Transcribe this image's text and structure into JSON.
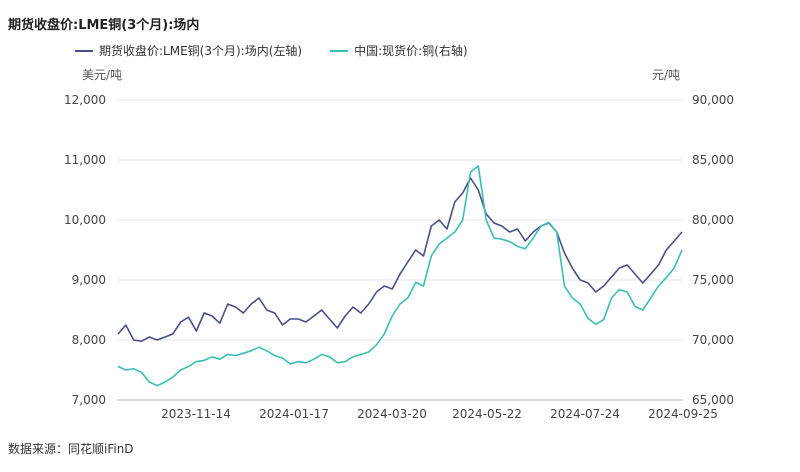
{
  "chart_data": {
    "type": "line",
    "title": "期货收盘价:LME铜(3个月):场内",
    "left_unit": "美元/吨",
    "right_unit": "元/吨",
    "source": "数据来源：同花顺iFinD",
    "x_tick_labels": [
      "2023-11-14",
      "2024-01-17",
      "2024-03-20",
      "2024-05-22",
      "2024-07-24",
      "2024-09-25"
    ],
    "y_left": {
      "min": 7000,
      "max": 12000,
      "ticks": [
        7000,
        8000,
        9000,
        10000,
        11000,
        12000
      ],
      "tick_labels": [
        "7,000",
        "8,000",
        "9,000",
        "10,000",
        "11,000",
        "12,000"
      ]
    },
    "y_right": {
      "min": 65000,
      "max": 90000,
      "ticks": [
        65000,
        70000,
        75000,
        80000,
        85000,
        90000
      ],
      "tick_labels": [
        "65,000",
        "70,000",
        "75,000",
        "80,000",
        "85,000",
        "90,000"
      ]
    },
    "series": [
      {
        "name": "期货收盘价:LME铜(3个月):场内(左轴)",
        "axis": "left",
        "color": "#4a4f8c",
        "values": [
          8100,
          8250,
          8000,
          7980,
          8050,
          8000,
          8050,
          8100,
          8300,
          8380,
          8150,
          8450,
          8400,
          8280,
          8600,
          8550,
          8450,
          8600,
          8700,
          8500,
          8450,
          8250,
          8350,
          8350,
          8300,
          8400,
          8500,
          8350,
          8200,
          8400,
          8550,
          8450,
          8600,
          8800,
          8900,
          8850,
          9100,
          9300,
          9500,
          9400,
          9900,
          10000,
          9850,
          10300,
          10450,
          10700,
          10500,
          10100,
          9950,
          9900,
          9800,
          9850,
          9650,
          9800,
          9900,
          9950,
          9800,
          9450,
          9200,
          9000,
          8950,
          8800,
          8900,
          9050,
          9200,
          9250,
          9100,
          8950,
          9100,
          9250,
          9500,
          9650,
          9800
        ]
      },
      {
        "name": "中国:现货价:铜(右轴)",
        "axis": "right",
        "color": "#3bbfb0",
        "values": [
          67800,
          67500,
          67600,
          67300,
          66500,
          66200,
          66500,
          66900,
          67500,
          67800,
          68200,
          68300,
          68600,
          68400,
          68800,
          68700,
          68900,
          69100,
          69400,
          69100,
          68700,
          68500,
          68000,
          68200,
          68100,
          68400,
          68800,
          68600,
          68100,
          68200,
          68600,
          68800,
          69000,
          69600,
          70500,
          72000,
          73000,
          73500,
          74800,
          74500,
          77000,
          78000,
          78500,
          79000,
          80000,
          84000,
          84500,
          80000,
          78500,
          78400,
          78200,
          77800,
          77600,
          78500,
          79500,
          79800,
          79000,
          74500,
          73500,
          73000,
          71800,
          71300,
          71700,
          73500,
          74200,
          74000,
          72800,
          72500,
          73500,
          74500,
          75200,
          76000,
          77500
        ]
      }
    ]
  }
}
